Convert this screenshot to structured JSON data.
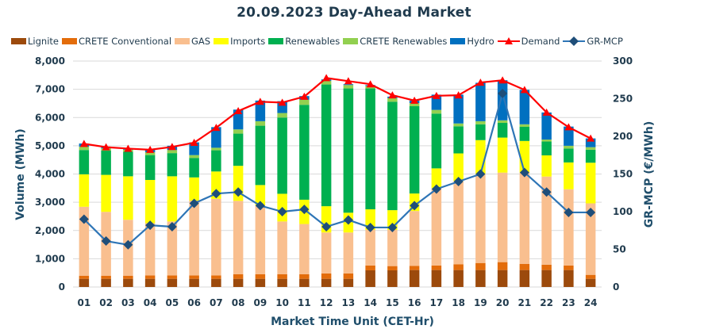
{
  "chart_data": {
    "type": "bar",
    "title": "20.09.2023  Day-Ahead Market",
    "xlabel": "Market Time Unit (CET-Hr)",
    "ylabel": "Volume (MWh)",
    "y2label": "GR-MCP (€/MWh)",
    "ylim": [
      0,
      8000
    ],
    "y2lim": [
      0,
      300
    ],
    "yticks": [
      "0",
      "1,000",
      "2,000",
      "3,000",
      "4,000",
      "5,000",
      "6,000",
      "7,000",
      "8,000"
    ],
    "y2ticks": [
      "0",
      "50",
      "100",
      "150",
      "200",
      "250",
      "300"
    ],
    "grid": true,
    "legend_position": "top",
    "categories": [
      "01",
      "02",
      "03",
      "04",
      "05",
      "06",
      "07",
      "08",
      "09",
      "10",
      "11",
      "12",
      "13",
      "14",
      "15",
      "16",
      "17",
      "18",
      "19",
      "20",
      "21",
      "22",
      "23",
      "24"
    ],
    "stacked_series": [
      {
        "name": "Lignite",
        "color": "#9c4a0c",
        "values": [
          290,
          290,
          290,
          290,
          290,
          290,
          290,
          290,
          290,
          290,
          290,
          290,
          290,
          590,
          590,
          600,
          600,
          600,
          600,
          600,
          600,
          600,
          600,
          290
        ]
      },
      {
        "name": "CRETE Conventional",
        "color": "#e36c0a",
        "values": [
          110,
          110,
          110,
          120,
          120,
          120,
          120,
          160,
          160,
          160,
          160,
          190,
          190,
          170,
          150,
          150,
          160,
          200,
          250,
          280,
          220,
          190,
          160,
          140
        ]
      },
      {
        "name": "GAS",
        "color": "#f9bf8f",
        "values": [
          2440,
          2260,
          1980,
          1850,
          1910,
          2650,
          2710,
          2600,
          2430,
          1870,
          1780,
          1450,
          1450,
          1260,
          1280,
          1940,
          2740,
          2950,
          3150,
          3170,
          3230,
          3120,
          2700,
          2530
        ]
      },
      {
        "name": "Imports",
        "color": "#ffff00",
        "values": [
          1150,
          1310,
          1540,
          1530,
          1600,
          820,
          970,
          1240,
          730,
          980,
          860,
          930,
          700,
          730,
          700,
          620,
          700,
          980,
          1200,
          1240,
          1120,
          750,
          950,
          1440
        ]
      },
      {
        "name": "Renewables",
        "color": "#00b050",
        "values": [
          860,
          860,
          870,
          880,
          820,
          690,
          750,
          1140,
          2100,
          2700,
          3360,
          4310,
          4400,
          4280,
          3840,
          3090,
          1940,
          960,
          560,
          520,
          500,
          490,
          490,
          460
        ]
      },
      {
        "name": "CRETE Renewables",
        "color": "#92d050",
        "values": [
          120,
          80,
          70,
          100,
          110,
          100,
          90,
          150,
          160,
          160,
          180,
          130,
          120,
          90,
          130,
          110,
          130,
          100,
          110,
          90,
          90,
          70,
          100,
          90
        ]
      },
      {
        "name": "Hydro",
        "color": "#0070c0",
        "values": [
          110,
          30,
          30,
          110,
          150,
          450,
          730,
          700,
          730,
          420,
          130,
          50,
          30,
          30,
          50,
          90,
          540,
          1020,
          1360,
          1420,
          1220,
          960,
          680,
          310
        ]
      }
    ],
    "line_series": [
      {
        "name": "Demand",
        "color": "#ff0000",
        "marker": "triangle",
        "axis": "left",
        "values": [
          5070,
          4950,
          4900,
          4860,
          4960,
          5110,
          5640,
          6230,
          6560,
          6530,
          6740,
          7400,
          7290,
          7180,
          6790,
          6600,
          6770,
          6790,
          7240,
          7320,
          6980,
          6180,
          5660,
          5260
        ]
      },
      {
        "name": "GR-MCP",
        "color": "#2e75b6",
        "marker_color": "#1f4e79",
        "marker": "diamond",
        "axis": "right",
        "values": [
          90,
          61,
          56,
          82,
          80,
          111,
          124,
          126,
          108,
          100,
          103,
          80,
          89,
          79,
          79,
          108,
          130,
          140,
          150,
          257,
          152,
          126,
          99,
          99
        ]
      }
    ]
  }
}
